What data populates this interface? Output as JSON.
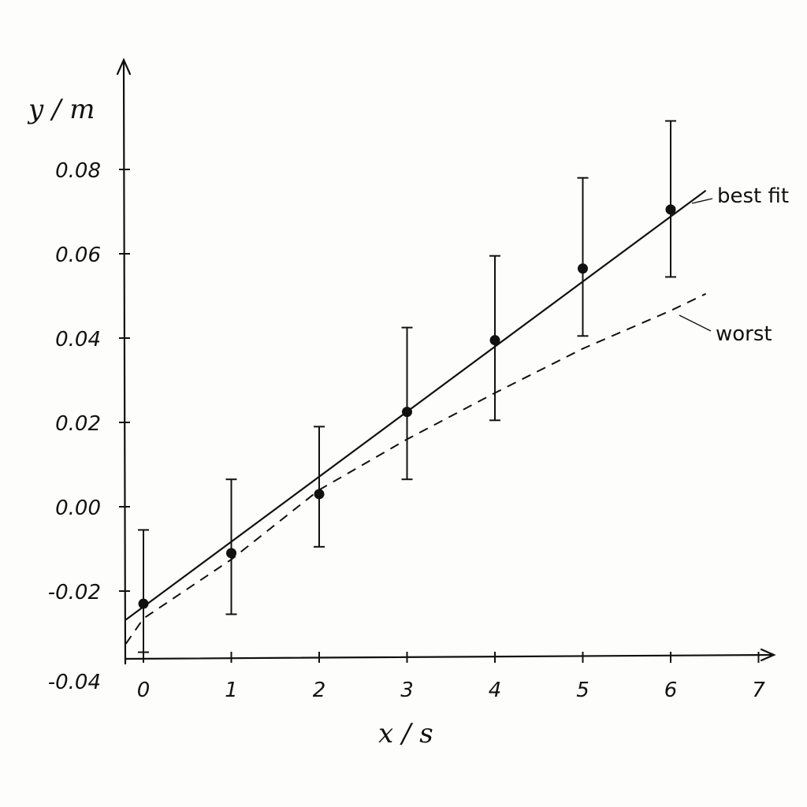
{
  "chart_data": {
    "type": "scatter",
    "xlabel": "x / s",
    "ylabel": "y / m",
    "xlim": [
      -0.2,
      7.3
    ],
    "ylim": [
      -0.04,
      0.1
    ],
    "x_ticks": [
      0,
      1,
      2,
      3,
      4,
      5,
      6,
      7
    ],
    "x_tick_labels": [
      "0",
      "1",
      "2",
      "3",
      "4",
      "5",
      "6",
      "7"
    ],
    "y_ticks": [
      -0.04,
      -0.02,
      0.0,
      0.02,
      0.04,
      0.06,
      0.08
    ],
    "y_tick_labels": [
      "-0.04",
      "-0.02",
      "0.00",
      "0.02",
      "0.04",
      "0.06",
      "0.08"
    ],
    "grid": false,
    "points": {
      "x": [
        0,
        1,
        2,
        3,
        4,
        5,
        6
      ],
      "y": [
        -0.023,
        -0.011,
        0.003,
        0.0225,
        0.0395,
        0.0565,
        0.0705
      ],
      "err_low": [
        -0.0345,
        -0.0255,
        -0.0095,
        0.0065,
        0.0205,
        0.0405,
        0.0545
      ],
      "err_high": [
        -0.0055,
        0.0065,
        0.019,
        0.0425,
        0.0595,
        0.078,
        0.0915
      ]
    },
    "series": [
      {
        "name": "best fit",
        "style": "solid",
        "x": [
          -0.2,
          6.4
        ],
        "y": [
          -0.0268,
          0.075
        ]
      },
      {
        "name": "worst",
        "style": "dashed",
        "x": [
          -0.2,
          0,
          1,
          2,
          3,
          4,
          5,
          6,
          6.4
        ],
        "y": [
          -0.0325,
          -0.0265,
          -0.0125,
          0.004,
          0.016,
          0.027,
          0.0375,
          0.0465,
          0.0505
        ]
      }
    ]
  }
}
